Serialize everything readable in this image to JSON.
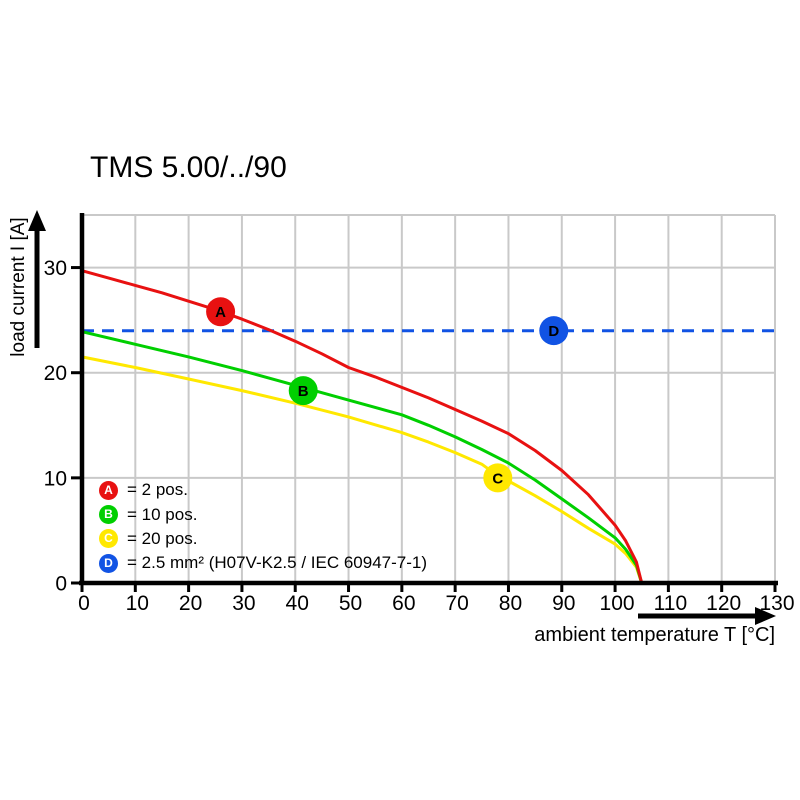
{
  "page": {
    "background": "#ffffff"
  },
  "chart_data": {
    "type": "line",
    "title": "TMS 5.00/../90",
    "xlabel": "ambient temperature T [°C]",
    "ylabel": "load current I [A]",
    "xlim": [
      0,
      130
    ],
    "ylim": [
      0,
      35
    ],
    "x_ticks": [
      0,
      10,
      20,
      30,
      40,
      50,
      60,
      70,
      80,
      90,
      100,
      110,
      120,
      130
    ],
    "y_ticks": [
      0,
      10,
      20,
      30
    ],
    "grid": true,
    "grid_color": "#c9c9c9",
    "axis_color": "#000000",
    "series": [
      {
        "key": "D",
        "name": "2.5 mm² (H07V-K2.5 / IEC 60947-7-1)",
        "color": "#1153e4",
        "dash": true,
        "points": [
          [
            0,
            24
          ],
          [
            130,
            24
          ]
        ]
      },
      {
        "key": "C",
        "name": "20 pos.",
        "color": "#ffe800",
        "dash": false,
        "points": [
          [
            0,
            21.5
          ],
          [
            10,
            20.5
          ],
          [
            20,
            19.4
          ],
          [
            30,
            18.3
          ],
          [
            40,
            17.1
          ],
          [
            50,
            15.8
          ],
          [
            60,
            14.3
          ],
          [
            65,
            13.4
          ],
          [
            70,
            12.4
          ],
          [
            75,
            11.3
          ],
          [
            78,
            10.2
          ],
          [
            80,
            9.7
          ],
          [
            85,
            8.3
          ],
          [
            90,
            6.8
          ],
          [
            95,
            5.2
          ],
          [
            100,
            3.7
          ],
          [
            102,
            2.8
          ],
          [
            104,
            1.5
          ],
          [
            105,
            0
          ]
        ]
      },
      {
        "key": "B",
        "name": "10 pos.",
        "color": "#00cf00",
        "dash": false,
        "points": [
          [
            0,
            23.9
          ],
          [
            10,
            22.7
          ],
          [
            20,
            21.5
          ],
          [
            30,
            20.2
          ],
          [
            40,
            18.8
          ],
          [
            50,
            17.4
          ],
          [
            60,
            16.0
          ],
          [
            65,
            15.0
          ],
          [
            70,
            13.9
          ],
          [
            75,
            12.7
          ],
          [
            80,
            11.4
          ],
          [
            85,
            9.8
          ],
          [
            90,
            8.0
          ],
          [
            95,
            6.2
          ],
          [
            100,
            4.3
          ],
          [
            102,
            3.2
          ],
          [
            104,
            1.7
          ],
          [
            105,
            0
          ]
        ]
      },
      {
        "key": "A",
        "name": "2 pos.",
        "color": "#e81111",
        "dash": false,
        "points": [
          [
            0,
            29.7
          ],
          [
            5,
            29.0
          ],
          [
            10,
            28.3
          ],
          [
            15,
            27.6
          ],
          [
            20,
            26.8
          ],
          [
            25,
            26.0
          ],
          [
            30,
            25.1
          ],
          [
            35,
            24.1
          ],
          [
            40,
            23.0
          ],
          [
            45,
            21.8
          ],
          [
            50,
            20.5
          ],
          [
            55,
            19.6
          ],
          [
            60,
            18.6
          ],
          [
            65,
            17.6
          ],
          [
            70,
            16.5
          ],
          [
            75,
            15.4
          ],
          [
            80,
            14.2
          ],
          [
            85,
            12.6
          ],
          [
            90,
            10.7
          ],
          [
            95,
            8.4
          ],
          [
            100,
            5.5
          ],
          [
            102,
            4.0
          ],
          [
            104,
            2.0
          ],
          [
            105,
            0
          ]
        ]
      }
    ],
    "markers": [
      {
        "key": "A",
        "x": 26,
        "y": 25.8,
        "color": "#e81111"
      },
      {
        "key": "B",
        "x": 41.5,
        "y": 18.3,
        "color": "#00cf00"
      },
      {
        "key": "C",
        "x": 78,
        "y": 10,
        "color": "#ffe800"
      },
      {
        "key": "D",
        "x": 88.5,
        "y": 24,
        "color": "#1153e4"
      }
    ]
  },
  "legend": {
    "items": [
      {
        "key": "A",
        "label": "= 2 pos.",
        "color": "#e81111"
      },
      {
        "key": "B",
        "label": "= 10 pos.",
        "color": "#00cf00"
      },
      {
        "key": "C",
        "label": "= 20 pos.",
        "color": "#ffe800"
      },
      {
        "key": "D",
        "label": "= 2.5 mm² (H07V-K2.5 / IEC 60947-7-1)",
        "color": "#1153e4"
      }
    ]
  }
}
